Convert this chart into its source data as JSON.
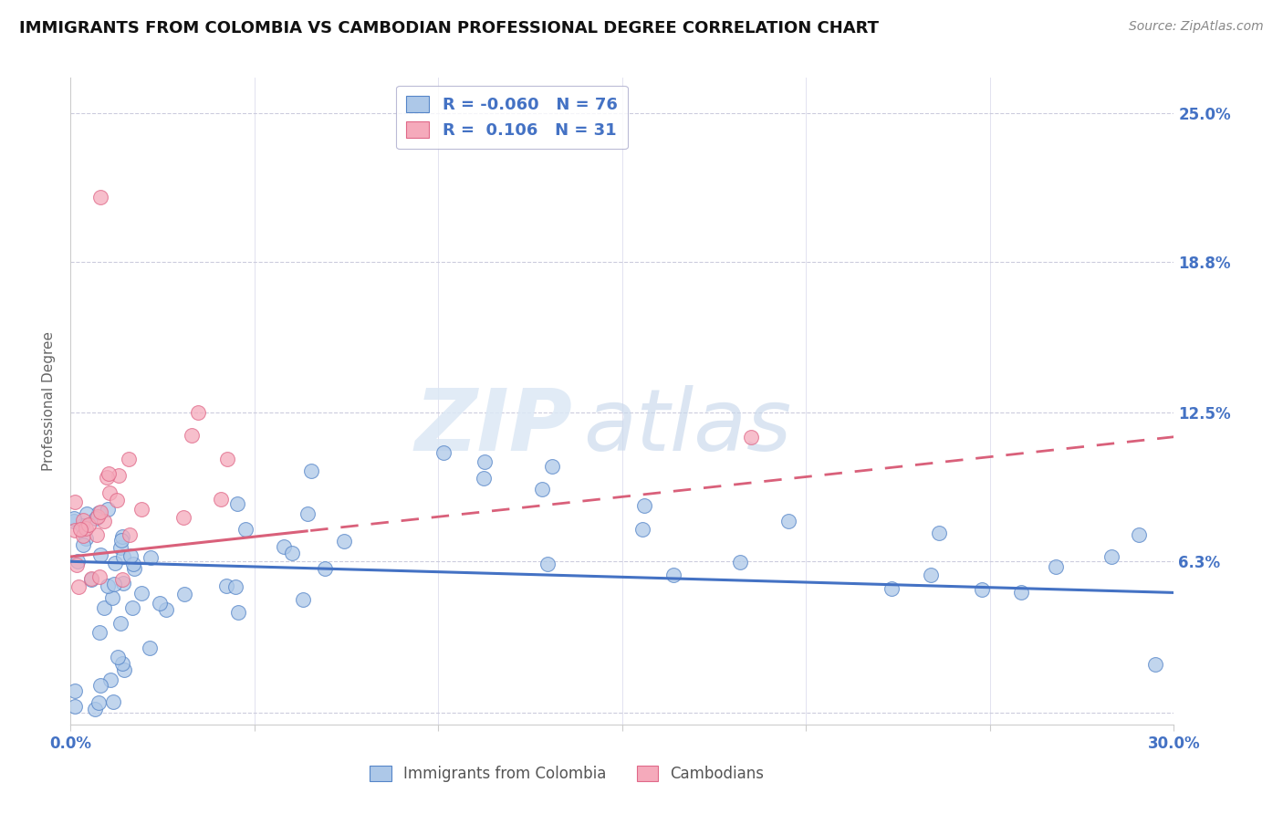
{
  "title": "IMMIGRANTS FROM COLOMBIA VS CAMBODIAN PROFESSIONAL DEGREE CORRELATION CHART",
  "source": "Source: ZipAtlas.com",
  "xlabel_colombia": "Immigrants from Colombia",
  "xlabel_cambodian": "Cambodians",
  "ylabel": "Professional Degree",
  "watermark_zip": "ZIP",
  "watermark_atlas": "atlas",
  "xlim": [
    0.0,
    0.3
  ],
  "ylim": [
    -0.005,
    0.265
  ],
  "ytick_values": [
    0.0,
    0.063,
    0.125,
    0.188,
    0.25
  ],
  "ytick_labels": [
    "",
    "6.3%",
    "12.5%",
    "18.8%",
    "25.0%"
  ],
  "colombia_R": -0.06,
  "colombia_N": 76,
  "cambodian_R": 0.106,
  "cambodian_N": 31,
  "colombia_color": "#adc8e8",
  "cambodian_color": "#f5aabb",
  "colombia_edge_color": "#5585c8",
  "cambodian_edge_color": "#e06888",
  "colombia_line_color": "#4472c4",
  "cambodian_line_color": "#d9607a",
  "grid_color": "#ccccdd",
  "title_color": "#111111",
  "tick_label_color": "#4472c4",
  "source_color": "#888888",
  "ylabel_color": "#666666",
  "legend_text_color": "#4472c4",
  "legend_border_color": "#aaaacc",
  "bottom_legend_color": "#555555"
}
